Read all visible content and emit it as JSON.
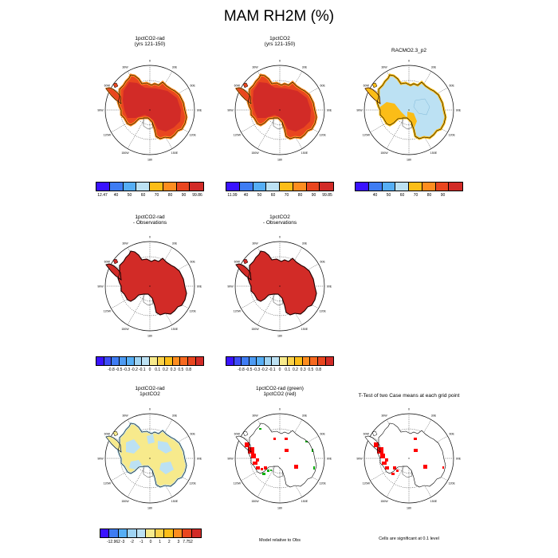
{
  "title": "MAM RH2M (%)",
  "map_labels": [
    "0",
    "30E",
    "60E",
    "90E",
    "120E",
    "150E",
    "180",
    "150W",
    "120W",
    "90W",
    "60W",
    "30W"
  ],
  "colors": {
    "deep_red": "#d22b27",
    "red_orange": "#e9461f",
    "orange": "#fd8d1f",
    "yellow_orange": "#fbbd17",
    "light_blue": "#bce1f3",
    "land_pale_yellow": "#f7ea8c",
    "sig_red": "#ff0000",
    "sig_green": "#00b000"
  },
  "panels": [
    {
      "id": "p1",
      "title_lines": [
        "1pctCO2-rad",
        "(yrs 121-150)"
      ],
      "fill": "red_orange_core_red"
    },
    {
      "id": "p2",
      "title_lines": [
        "1pctCO2",
        "(yrs 121-150)"
      ],
      "fill": "red_orange_core_red"
    },
    {
      "id": "p3",
      "title_lines": [
        "RACMO2.3_p2"
      ],
      "fill": "blue_orange"
    },
    {
      "id": "p4",
      "title_lines": [
        "1pctCO2-rad",
        "- Observations"
      ],
      "fill": "solid_red"
    },
    {
      "id": "p5",
      "title_lines": [
        "1pctCO2",
        "- Observations"
      ],
      "fill": "solid_red"
    },
    {
      "id": "p7",
      "title_lines": [
        "1pctCO2-rad",
        "1pctCO2"
      ],
      "fill": "yellow_blue"
    },
    {
      "id": "p8",
      "title_lines": [
        "1pctCO2-rad (green)",
        "1pctCO2 (red)"
      ],
      "fill": "outline_sig_rg"
    },
    {
      "id": "p9",
      "title_lines": [
        "T-Test of two Case means at each grid point"
      ],
      "fill": "outline_sig_r"
    }
  ],
  "colorbars": {
    "cb1": {
      "colors": [
        "#3a13ff",
        "#3e7cf3",
        "#56aef5",
        "#bce1f3",
        "#fbbd17",
        "#fd8d1f",
        "#e9461f",
        "#d22b27"
      ],
      "labels": [
        "12.47",
        "40",
        "50",
        "60",
        "70",
        "80",
        "90",
        "99.86"
      ]
    },
    "cb2": {
      "colors": [
        "#3a13ff",
        "#3e7cf3",
        "#56aef5",
        "#bce1f3",
        "#fbbd17",
        "#fd8d1f",
        "#e9461f",
        "#d22b27"
      ],
      "labels": [
        "11.99",
        "40",
        "50",
        "60",
        "70",
        "80",
        "90",
        "99.85"
      ]
    },
    "cb3": {
      "colors": [
        "#3a13ff",
        "#3e7cf3",
        "#56aef5",
        "#bce1f3",
        "#fbbd17",
        "#fd8d1f",
        "#e9461f",
        "#d22b27"
      ],
      "labels": [
        "40",
        "50",
        "60",
        "70",
        "80",
        "90"
      ]
    },
    "cb4": {
      "colors": [
        "#3a13ff",
        "#3d4df5",
        "#3e7cf3",
        "#4d9bf3",
        "#56aef5",
        "#9fd3f2",
        "#bce1f3",
        "#f7ea8c",
        "#fbd24a",
        "#fbbd17",
        "#fd8d1f",
        "#f7691f",
        "#e9461f",
        "#d22b27"
      ],
      "labels": [
        "-0.8",
        "-0.5",
        "-0.3",
        "-0.2",
        "-0.1",
        "0",
        "0.1",
        "0.2",
        "0.3",
        "0.5",
        "0.8"
      ]
    },
    "cb5": {
      "colors": [
        "#3a13ff",
        "#3d4df5",
        "#3e7cf3",
        "#4d9bf3",
        "#56aef5",
        "#9fd3f2",
        "#bce1f3",
        "#f7ea8c",
        "#fbd24a",
        "#fbbd17",
        "#fd8d1f",
        "#f7691f",
        "#e9461f",
        "#d22b27"
      ],
      "labels": [
        "-0.8",
        "-0.5",
        "-0.3",
        "-0.2",
        "-0.1",
        "0",
        "0.1",
        "0.2",
        "0.3",
        "0.5",
        "0.8"
      ]
    },
    "cb7": {
      "colors": [
        "#3a13ff",
        "#3e7cf3",
        "#56aef5",
        "#9fd3f2",
        "#bce1f3",
        "#f7ea8c",
        "#fbd24a",
        "#fbbd17",
        "#fd8d1f",
        "#e9461f",
        "#d22b27"
      ],
      "labels": [
        "-12.962",
        "-3",
        "-2",
        "-1",
        "0",
        "1",
        "2",
        "3",
        "7.752"
      ]
    }
  },
  "notes": {
    "model_relative": "Model relative to Obs",
    "significance": "Cells are significant at 0.1 level"
  }
}
